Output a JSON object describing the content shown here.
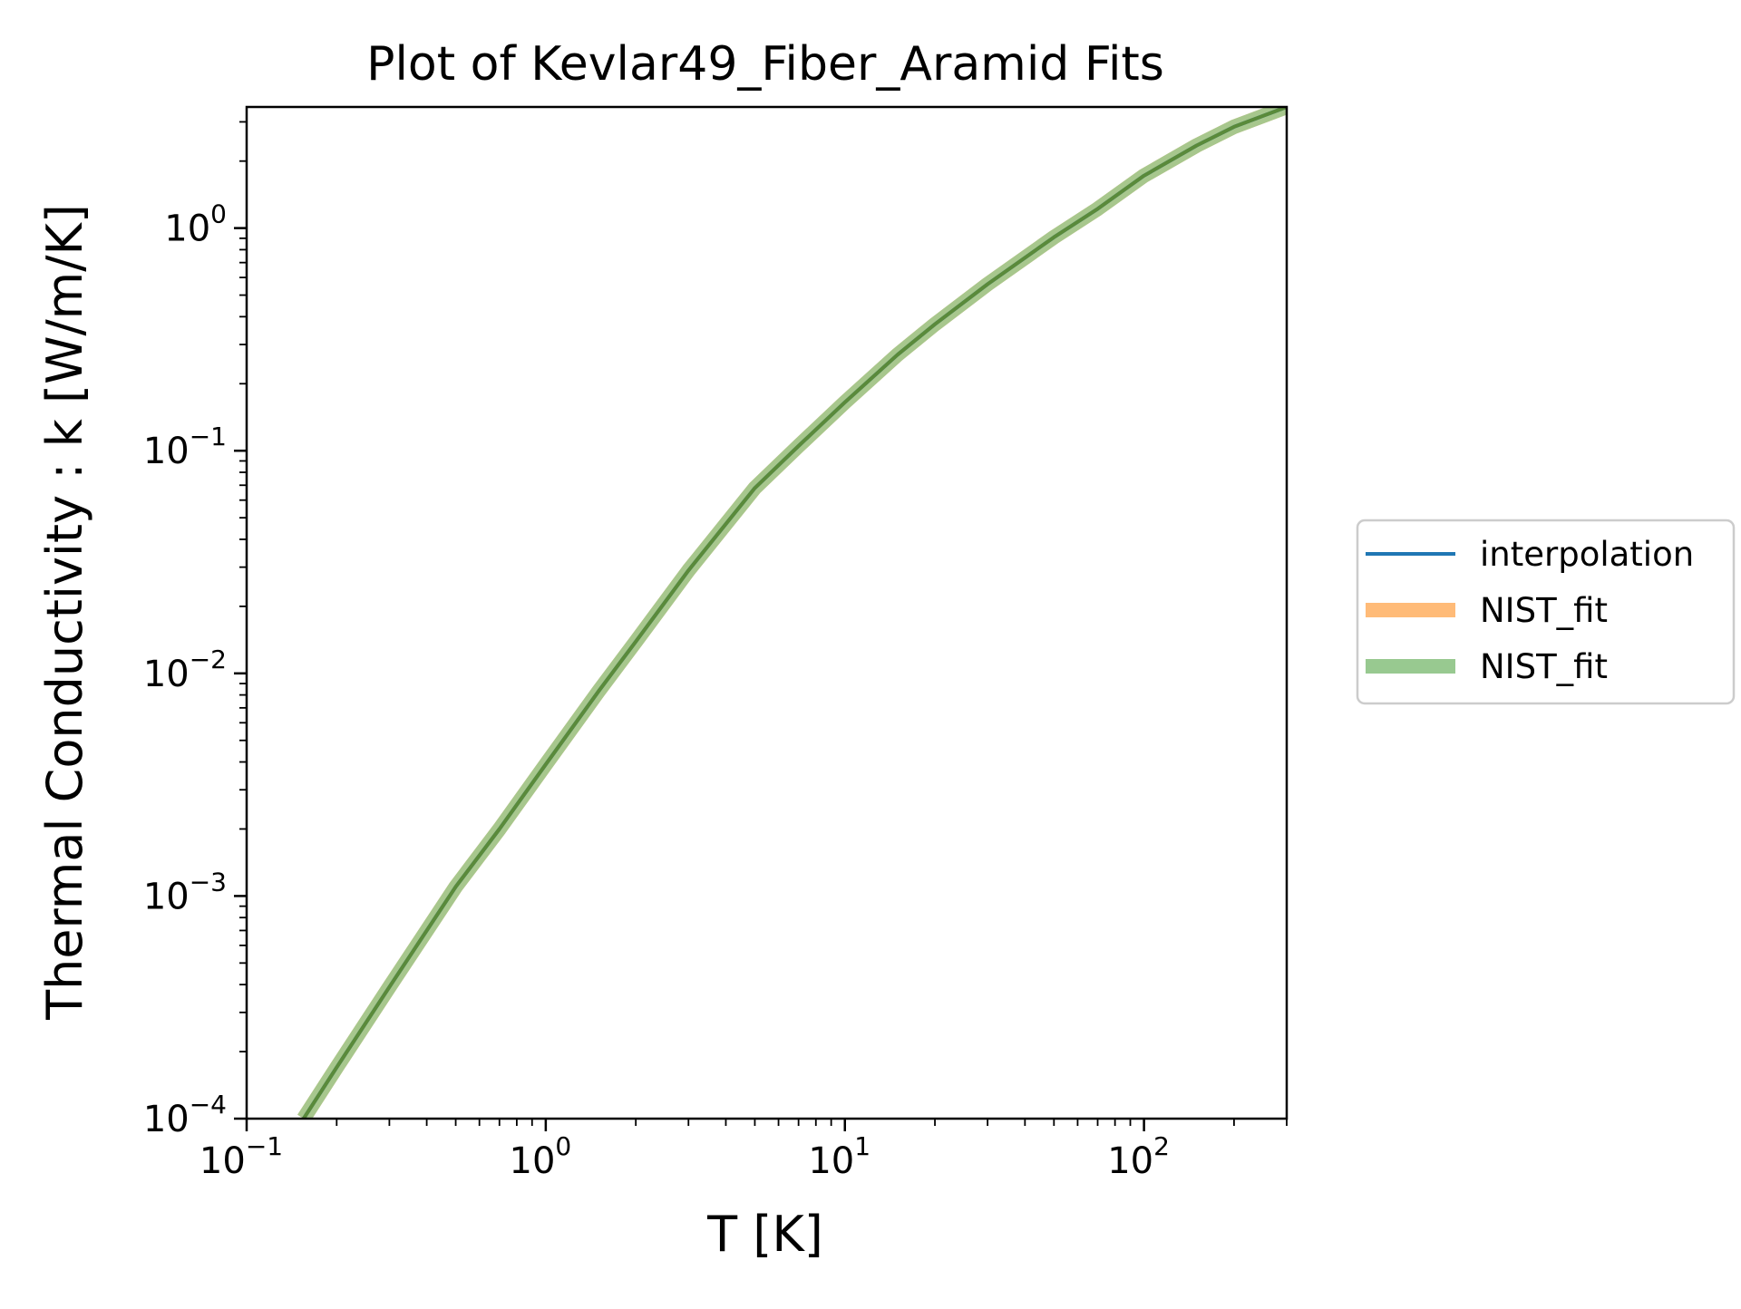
{
  "chart_data": {
    "type": "line",
    "title": "Plot of Kevlar49_Fiber_Aramid Fits",
    "xlabel": "T [K]",
    "ylabel": "Thermal Conductivity : k [W/m/K]",
    "xscale": "log",
    "yscale": "log",
    "xlim": [
      0.1,
      300
    ],
    "ylim": [
      0.0001,
      3.5
    ],
    "x_ticks": [
      {
        "value": 0.1,
        "base": "10",
        "exp": "−1"
      },
      {
        "value": 1,
        "base": "10",
        "exp": "0"
      },
      {
        "value": 10,
        "base": "10",
        "exp": "1"
      },
      {
        "value": 100,
        "base": "10",
        "exp": "2"
      }
    ],
    "y_ticks": [
      {
        "value": 0.0001,
        "base": "10",
        "exp": "−4"
      },
      {
        "value": 0.001,
        "base": "10",
        "exp": "−3"
      },
      {
        "value": 0.01,
        "base": "10",
        "exp": "−2"
      },
      {
        "value": 0.1,
        "base": "10",
        "exp": "−1"
      },
      {
        "value": 1,
        "base": "10",
        "exp": "0"
      }
    ],
    "grid": false,
    "legend_position": "outside-right",
    "x": [
      0.155,
      0.2,
      0.3,
      0.5,
      0.7,
      1.0,
      1.5,
      2.0,
      3.0,
      5.0,
      7.0,
      10,
      15,
      20,
      30,
      50,
      70,
      100,
      150,
      200,
      300
    ],
    "series": [
      {
        "name": "interpolation",
        "color": "#1f77b4",
        "values": [
          0.0001,
          0.00017,
          0.00039,
          0.0011,
          0.002,
          0.0039,
          0.0083,
          0.0139,
          0.029,
          0.068,
          0.105,
          0.165,
          0.27,
          0.37,
          0.56,
          0.91,
          1.22,
          1.72,
          2.35,
          2.85,
          3.5
        ]
      },
      {
        "name": "NIST_fit",
        "color": "#ffbb78",
        "values": [
          0.0001,
          0.00017,
          0.00039,
          0.0011,
          0.002,
          0.0039,
          0.0083,
          0.0139,
          0.029,
          0.068,
          0.105,
          0.165,
          0.27,
          0.37,
          0.56,
          0.91,
          1.22,
          1.72,
          2.35,
          2.85,
          3.5
        ]
      },
      {
        "name": "NIST_fit",
        "color": "#98c990",
        "values": [
          0.0001,
          0.00017,
          0.00039,
          0.0011,
          0.002,
          0.0039,
          0.0083,
          0.0139,
          0.029,
          0.068,
          0.105,
          0.165,
          0.27,
          0.37,
          0.56,
          0.91,
          1.22,
          1.72,
          2.35,
          2.85,
          3.5
        ]
      }
    ]
  }
}
